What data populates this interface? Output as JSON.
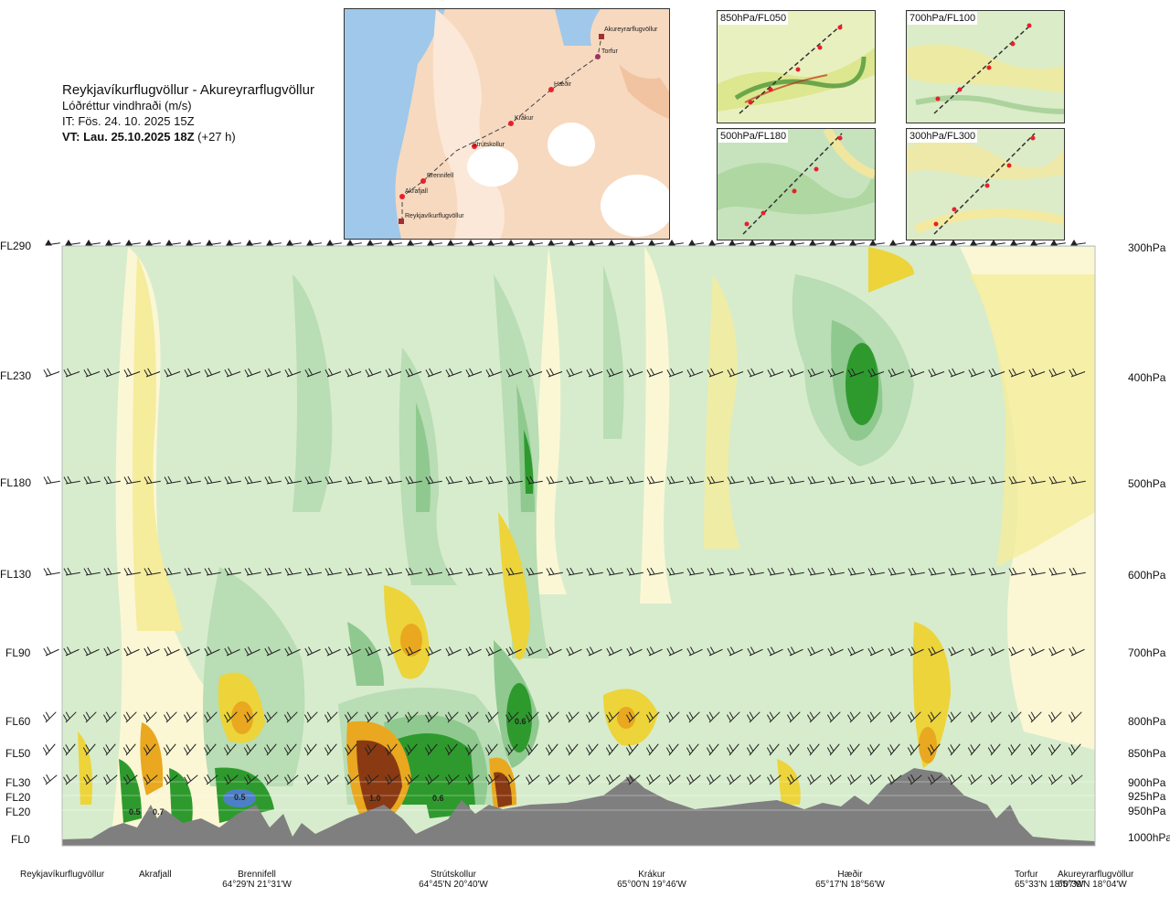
{
  "header": {
    "title": "Reykjavíkurflugvöllur - Akureyrarflugvöllur",
    "subtitle": "Lóðréttur vindhraði (m/s)",
    "issue_time": "IT: Fös. 24. 10. 2025 15Z",
    "valid_time": "VT: Lau. 25.10.2025 18Z",
    "lead": "(+27 h)"
  },
  "map": {
    "labels": [
      "Akureyrarflugvöllur",
      "Torfur",
      "Hæðir",
      "Krákur",
      "Strútskollur",
      "Brennifell",
      "Akrafjall",
      "Reykjavíkurflugvöllur"
    ]
  },
  "panels": [
    "850hPa/FL050",
    "700hPa/FL100",
    "500hPa/FL180",
    "300hPa/FL300"
  ],
  "chart_data": {
    "type": "heatmap",
    "title": "Lóðréttur vindhraði (m/s)",
    "flight_levels": [
      "FL290",
      "FL230",
      "FL180",
      "FL130",
      "FL90",
      "FL60",
      "FL50",
      "FL30",
      "FL20",
      "FL20",
      "FL0"
    ],
    "pressure_levels": [
      "300hPa",
      "400hPa",
      "500hPa",
      "600hPa",
      "700hPa",
      "800hPa",
      "850hPa",
      "900hPa",
      "925hPa",
      "950hPa",
      "1000hPa"
    ],
    "value_labels": [
      "0.5",
      "0.7",
      "0.5",
      "1.0",
      "0.6",
      "0.6"
    ],
    "locations": [
      {
        "name": "Reykjavíkurflugvöllur",
        "coord": ""
      },
      {
        "name": "Akrafjall",
        "coord": ""
      },
      {
        "name": "Brennifell",
        "coord": "64°29'N 21°31'W"
      },
      {
        "name": "Strútskollur",
        "coord": "64°45'N 20°40'W"
      },
      {
        "name": "Krákur",
        "coord": "65°00'N 19°46'W"
      },
      {
        "name": "Hæðir",
        "coord": "65°17'N 18°56'W"
      },
      {
        "name": "Torfur",
        "coord": "65°33'N 18°07'W"
      },
      {
        "name": "Akureyrarflugvöllur",
        "coord": "65°39'N 18°04'W"
      }
    ],
    "colors": {
      "strong_sink": "#2e9a2e",
      "sink": "#8fc98f",
      "weak_sink": "#b9ddb4",
      "neutral": "#d7eccd",
      "near_zero": "#fbf7d5",
      "weak_lift": "#f5ec9c",
      "lift": "#ecd43a",
      "strong_lift": "#e9a81f",
      "very_strong_lift": "#8a3a12",
      "blue": "#4d7fc7",
      "terrain": "#7f7f7f"
    }
  }
}
